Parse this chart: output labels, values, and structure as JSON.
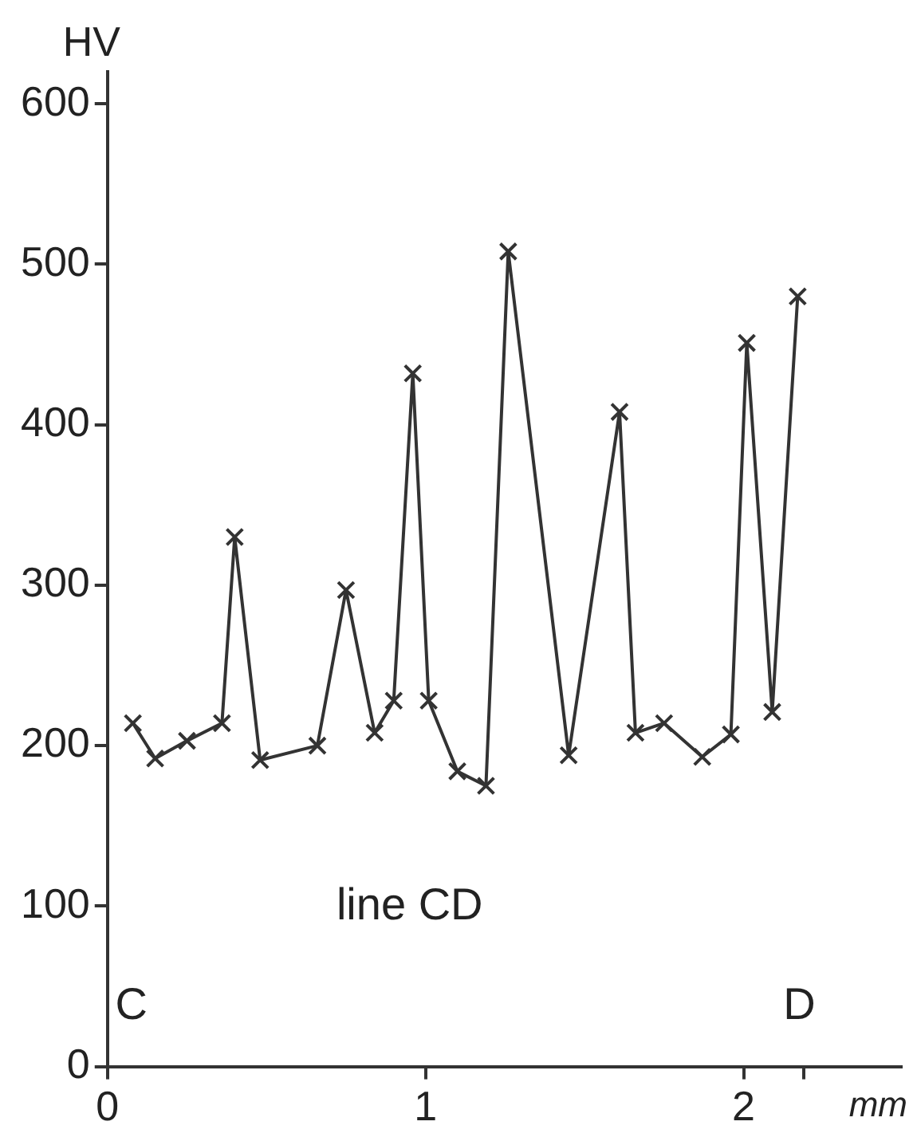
{
  "chart_data": {
    "type": "line",
    "xlabel": "mm",
    "ylabel": "HV",
    "x": [
      0.08,
      0.15,
      0.25,
      0.36,
      0.4,
      0.48,
      0.66,
      0.75,
      0.84,
      0.9,
      0.96,
      1.01,
      1.1,
      1.19,
      1.26,
      1.45,
      1.61,
      1.66,
      1.75,
      1.87,
      1.96,
      2.01,
      2.09,
      2.17
    ],
    "series": [
      {
        "color": "#333333",
        "values": [
          214,
          192,
          203,
          214,
          330,
          191,
          200,
          297,
          208,
          228,
          432,
          228,
          184,
          175,
          508,
          194,
          408,
          208,
          214,
          193,
          207,
          451,
          221,
          480
        ]
      }
    ],
    "xlim": [
      0,
      2.5
    ],
    "xticks": [
      0,
      1,
      2,
      {
        "value": 2.19,
        "label": null
      }
    ],
    "ylim": [
      0,
      620
    ],
    "yticks": [
      0,
      100,
      200,
      300,
      400,
      500,
      600
    ],
    "annotations": [
      "line CD",
      "C",
      "D"
    ],
    "legend": false,
    "marker": "cross",
    "line_style": "solid"
  }
}
